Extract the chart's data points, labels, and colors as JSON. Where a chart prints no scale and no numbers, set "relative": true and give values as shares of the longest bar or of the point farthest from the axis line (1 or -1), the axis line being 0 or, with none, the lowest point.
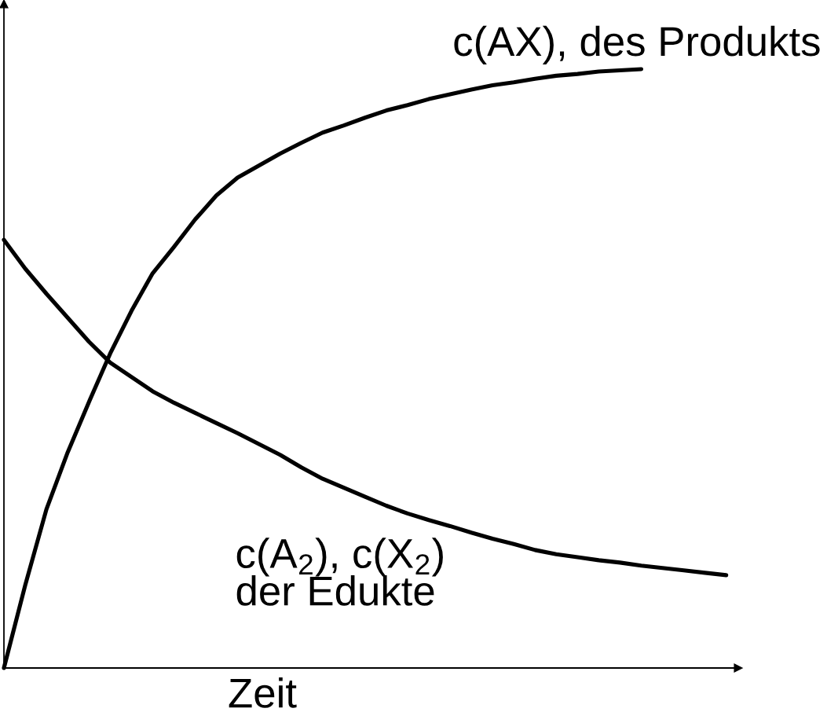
{
  "chart_data": {
    "type": "line",
    "relative": true,
    "xlabel": "Zeit",
    "categories": [
      null,
      null,
      null,
      null,
      null,
      null,
      null,
      null,
      null,
      null,
      null,
      null,
      null,
      null,
      null,
      null,
      null,
      null,
      null,
      null,
      null,
      null,
      null,
      null,
      null,
      null,
      null,
      null,
      null,
      null,
      null,
      null,
      null,
      null,
      null
    ],
    "series": [
      {
        "name": "c(AX), des Produkts",
        "color": "#000000",
        "values": [
          0,
          0.138,
          0.265,
          0.36,
          0.444,
          0.525,
          0.596,
          0.659,
          0.703,
          0.749,
          0.789,
          0.819,
          0.839,
          0.859,
          0.877,
          0.894,
          0.906,
          0.919,
          0.931,
          0.94,
          0.95,
          0.958,
          0.966,
          0.973,
          0.978,
          0.984,
          0.989,
          0.992,
          0.996,
          0.998,
          1,
          null,
          null,
          null,
          null
        ]
      },
      {
        "name": "c(A$_{2}$), c(X$_{2}$)\nder Edukte",
        "color": "#000000",
        "values": [
          0.715,
          0.667,
          0.625,
          0.585,
          0.545,
          0.51,
          0.486,
          0.462,
          0.443,
          0.426,
          0.409,
          0.392,
          0.374,
          0.356,
          0.335,
          0.316,
          0.301,
          0.286,
          0.271,
          0.258,
          0.247,
          0.237,
          0.226,
          0.216,
          0.207,
          0.197,
          0.19,
          0.185,
          0.18,
          0.176,
          0.171,
          0.167,
          0.163,
          0.159,
          0.155
        ]
      }
    ],
    "line_style": "solid",
    "marker": "none"
  }
}
